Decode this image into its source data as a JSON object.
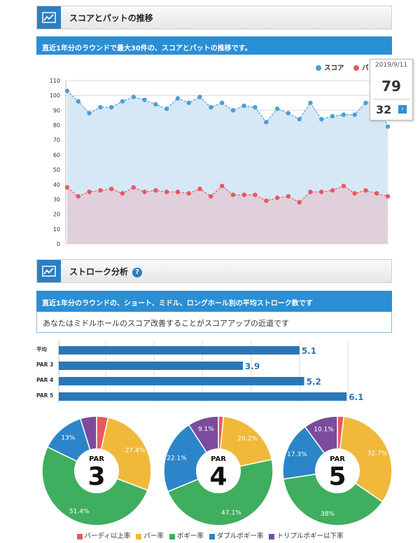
{
  "section1": {
    "title": "スコアとパットの推移",
    "description": "直近1年分のラウンドで最大30件の、スコアとパットの推移です。"
  },
  "tooltip": {
    "date": "2019/9/11",
    "score": "79",
    "putts": "32",
    "arrow": "›"
  },
  "section2": {
    "title": "ストローク分析",
    "help": "?",
    "description": "直近1年分のラウンドの、ショート、ミドル、ロングホール別の平均ストローク数です",
    "message": "あなたはミドルホールのスコア改善することがスコアアップの近道です"
  },
  "colors": {
    "score": "#4b9fd6",
    "putt": "#e8585e",
    "score_fill": "#d6e8f6",
    "putt_fill": "#dfd0dc",
    "bar": "#2a77b8",
    "birdie": "#e8585e",
    "par": "#f0b93a",
    "bogey": "#3fae5f",
    "double": "#2b85c8",
    "triple": "#7b4c9d"
  },
  "chart_data": [
    {
      "type": "line",
      "legend": [
        "スコア",
        "パット"
      ],
      "legend_position": "top-right",
      "ylim": [
        0,
        110
      ],
      "yticks": [
        "0",
        "10",
        "20",
        "30",
        "40",
        "50",
        "60",
        "70",
        "80",
        "90",
        "100",
        "110"
      ],
      "grid": true,
      "series": [
        {
          "name": "スコア",
          "values": [
            103,
            96,
            88,
            92,
            92,
            96,
            99,
            97,
            94,
            91,
            98,
            95,
            99,
            92,
            95,
            90,
            93,
            92,
            82,
            91,
            88,
            84,
            95,
            84,
            86,
            87,
            87,
            95,
            97,
            79
          ]
        },
        {
          "name": "パット",
          "values": [
            38,
            32,
            35,
            36,
            37,
            34,
            38,
            35,
            36,
            35,
            35,
            34,
            37,
            32,
            39,
            33,
            33,
            33,
            29,
            31,
            32,
            28,
            35,
            35,
            36,
            39,
            34,
            36,
            34,
            32
          ]
        }
      ]
    },
    {
      "type": "bar",
      "orientation": "horizontal",
      "categories": [
        "平均",
        "PAR 3",
        "PAR 4",
        "PAR 5"
      ],
      "values": [
        5.1,
        3.9,
        5.2,
        6.1
      ],
      "labels": [
        "5.1",
        "3.9",
        "5.2",
        "6.1"
      ],
      "xlim": [
        0,
        6.2
      ]
    },
    {
      "type": "pie",
      "title": "PAR",
      "center_number": "3",
      "categories": [
        "バーディ以上率",
        "パー率",
        "ボギー率",
        "ダブルボギー率",
        "トリプルボギー以下率"
      ],
      "values": [
        3.4,
        27.4,
        51.4,
        13,
        4.8
      ],
      "labels": [
        "",
        "27.4%",
        "51.4%",
        "13%",
        ""
      ]
    },
    {
      "type": "pie",
      "title": "PAR",
      "center_number": "4",
      "categories": [
        "バーディ以上率",
        "パー率",
        "ボギー率",
        "ダブルボギー率",
        "トリプルボギー以下率"
      ],
      "values": [
        1.5,
        20.2,
        47.1,
        22.1,
        9.1
      ],
      "labels": [
        "",
        "20.2%",
        "47.1%",
        "22.1%",
        "9.1%"
      ]
    },
    {
      "type": "pie",
      "title": "PAR",
      "center_number": "5",
      "categories": [
        "バーディ以上率",
        "パー率",
        "ボギー率",
        "ダブルボギー率",
        "トリプルボギー以下率"
      ],
      "values": [
        1.9,
        32.7,
        38,
        17.3,
        10.1
      ],
      "labels": [
        "",
        "32.7%",
        "38%",
        "17.3%",
        "10.1%"
      ]
    }
  ],
  "pie_legend": [
    {
      "label": "バーディ以上率",
      "color": "#e8585e"
    },
    {
      "label": "パー率",
      "color": "#f0b93a"
    },
    {
      "label": "ボギー率",
      "color": "#3fae5f"
    },
    {
      "label": "ダブルボギー率",
      "color": "#2b85c8"
    },
    {
      "label": "トリプルボギー以下率",
      "color": "#7b4c9d"
    }
  ]
}
